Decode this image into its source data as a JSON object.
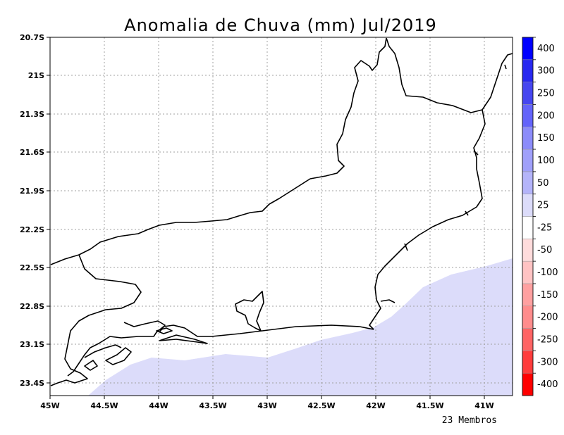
{
  "title": "Anomalia de Chuva (mm) Jul/2019",
  "footer": "23 Membros",
  "map": {
    "lon_range": [
      -45.0,
      -40.75
    ],
    "lat_range": [
      -23.5,
      -20.7
    ],
    "lon_ticks": [
      {
        "value": -45.0,
        "label": "45W"
      },
      {
        "value": -44.5,
        "label": "44.5W"
      },
      {
        "value": -44.0,
        "label": "44W"
      },
      {
        "value": -43.5,
        "label": "43.5W"
      },
      {
        "value": -43.0,
        "label": "43W"
      },
      {
        "value": -42.5,
        "label": "42.5W"
      },
      {
        "value": -42.0,
        "label": "42W"
      },
      {
        "value": -41.5,
        "label": "41.5W"
      },
      {
        "value": -41.0,
        "label": "41W"
      }
    ],
    "lat_ticks": [
      {
        "value": -20.7,
        "label": "20.7S"
      },
      {
        "value": -21.0,
        "label": "21S"
      },
      {
        "value": -21.3,
        "label": "21.3S"
      },
      {
        "value": -21.6,
        "label": "21.6S"
      },
      {
        "value": -21.9,
        "label": "21.9S"
      },
      {
        "value": -22.2,
        "label": "22.2S"
      },
      {
        "value": -22.5,
        "label": "22.5S"
      },
      {
        "value": -22.8,
        "label": "22.8S"
      },
      {
        "value": -23.1,
        "label": "23.1S"
      },
      {
        "value": -23.4,
        "label": "23.4S"
      }
    ],
    "grid": true,
    "anomaly_shading": {
      "class": "25 to 50",
      "color": "#dcdcfa",
      "region": "ocean south of the coast"
    }
  },
  "colorbar": {
    "colors": [
      "#ff0000",
      "#ff3c3c",
      "#ff6464",
      "#ff8c8c",
      "#ffa0a0",
      "#ffc3c3",
      "#ffdcdc",
      "#ffffff",
      "#dcdcfa",
      "#b4b4fa",
      "#a0a0fa",
      "#8c8cfa",
      "#6464fa",
      "#4646f0",
      "#2828f0",
      "#0000ff"
    ],
    "labels": [
      "-400",
      "-300",
      "-250",
      "-200",
      "-150",
      "-100",
      "-50",
      "-25",
      "25",
      "50",
      "100",
      "150",
      "200",
      "250",
      "300",
      "400"
    ]
  }
}
